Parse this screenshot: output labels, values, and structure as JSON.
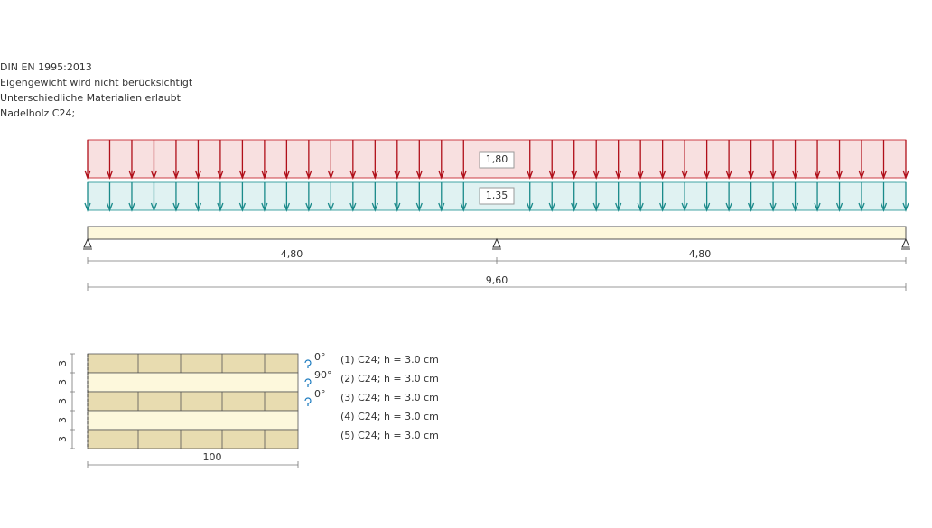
{
  "header": {
    "lines": [
      "DIN EN 1995:2013",
      "Eigengewicht wird nicht berücksichtigt",
      "Unterschiedliche Materialien erlaubt",
      "Nadelholz C24;"
    ]
  },
  "beam": {
    "loads": [
      "1,80",
      "1,35"
    ],
    "spans": [
      "4,80",
      "4,80"
    ],
    "total": "9,60"
  },
  "cross_section": {
    "thickness_labels": [
      "3",
      "3",
      "3",
      "3",
      "3"
    ],
    "width": "100",
    "orientations": [
      "0°",
      "90°",
      "0°"
    ],
    "layers": [
      "(1) C24; h = 3.0 cm",
      "(2) C24; h = 3.0 cm",
      "(3) C24; h = 3.0 cm",
      "(4) C24; h = 3.0 cm",
      "(5) C24; h = 3.0 cm"
    ]
  }
}
